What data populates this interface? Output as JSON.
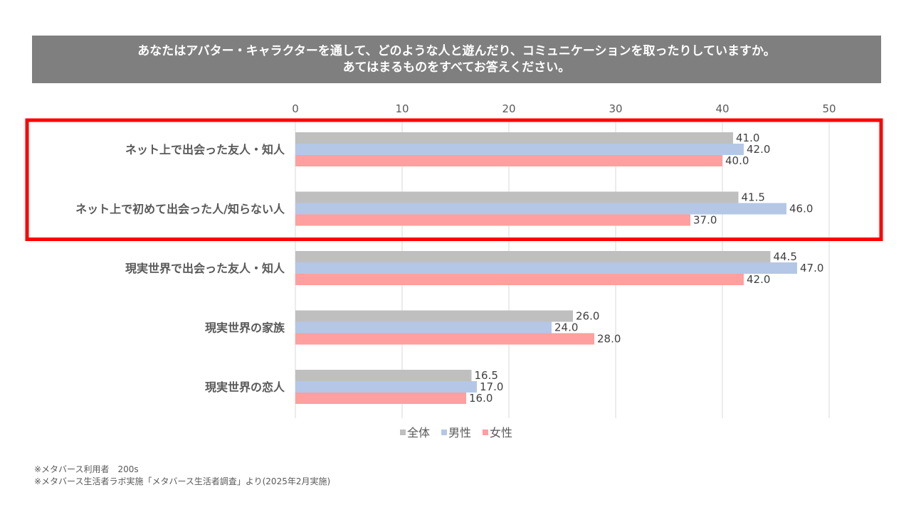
{
  "title": {
    "line1": "あなたはアバター・キャラクターを通して、どのような人と遊んだり、コミュニケーションを取ったりしていますか。",
    "line2": "あてはまるものをすべてお答えください。"
  },
  "chart_data": {
    "type": "bar",
    "orientation": "horizontal",
    "categories": [
      "ネット上で出会った友人・知人",
      "ネット上で初めて出会った人/知らない人",
      "現実世界で出会った友人・知人",
      "現実世界の家族",
      "現実世界の恋人"
    ],
    "series": [
      {
        "name": "全体",
        "color": "#bfbfbf",
        "values": [
          41.0,
          41.5,
          44.5,
          26.0,
          16.5
        ]
      },
      {
        "name": "男性",
        "color": "#b4c7e7",
        "values": [
          42.0,
          46.0,
          47.0,
          24.0,
          17.0
        ]
      },
      {
        "name": "女性",
        "color": "#ff9f9f",
        "values": [
          40.0,
          37.0,
          42.0,
          28.0,
          16.0
        ]
      }
    ],
    "xlim": [
      0,
      50
    ],
    "xticks": [
      0,
      10,
      20,
      30,
      40,
      50
    ],
    "axis_position": "top",
    "grid": true,
    "legend": "bottom",
    "highlight": {
      "categories": [
        0,
        1
      ],
      "color": "#ff0000"
    }
  },
  "footnotes": [
    "※メタバース利用者　200s",
    "※メタバース生活者ラボ実施「メタバース生活者調査」より(2025年2月実施)"
  ]
}
